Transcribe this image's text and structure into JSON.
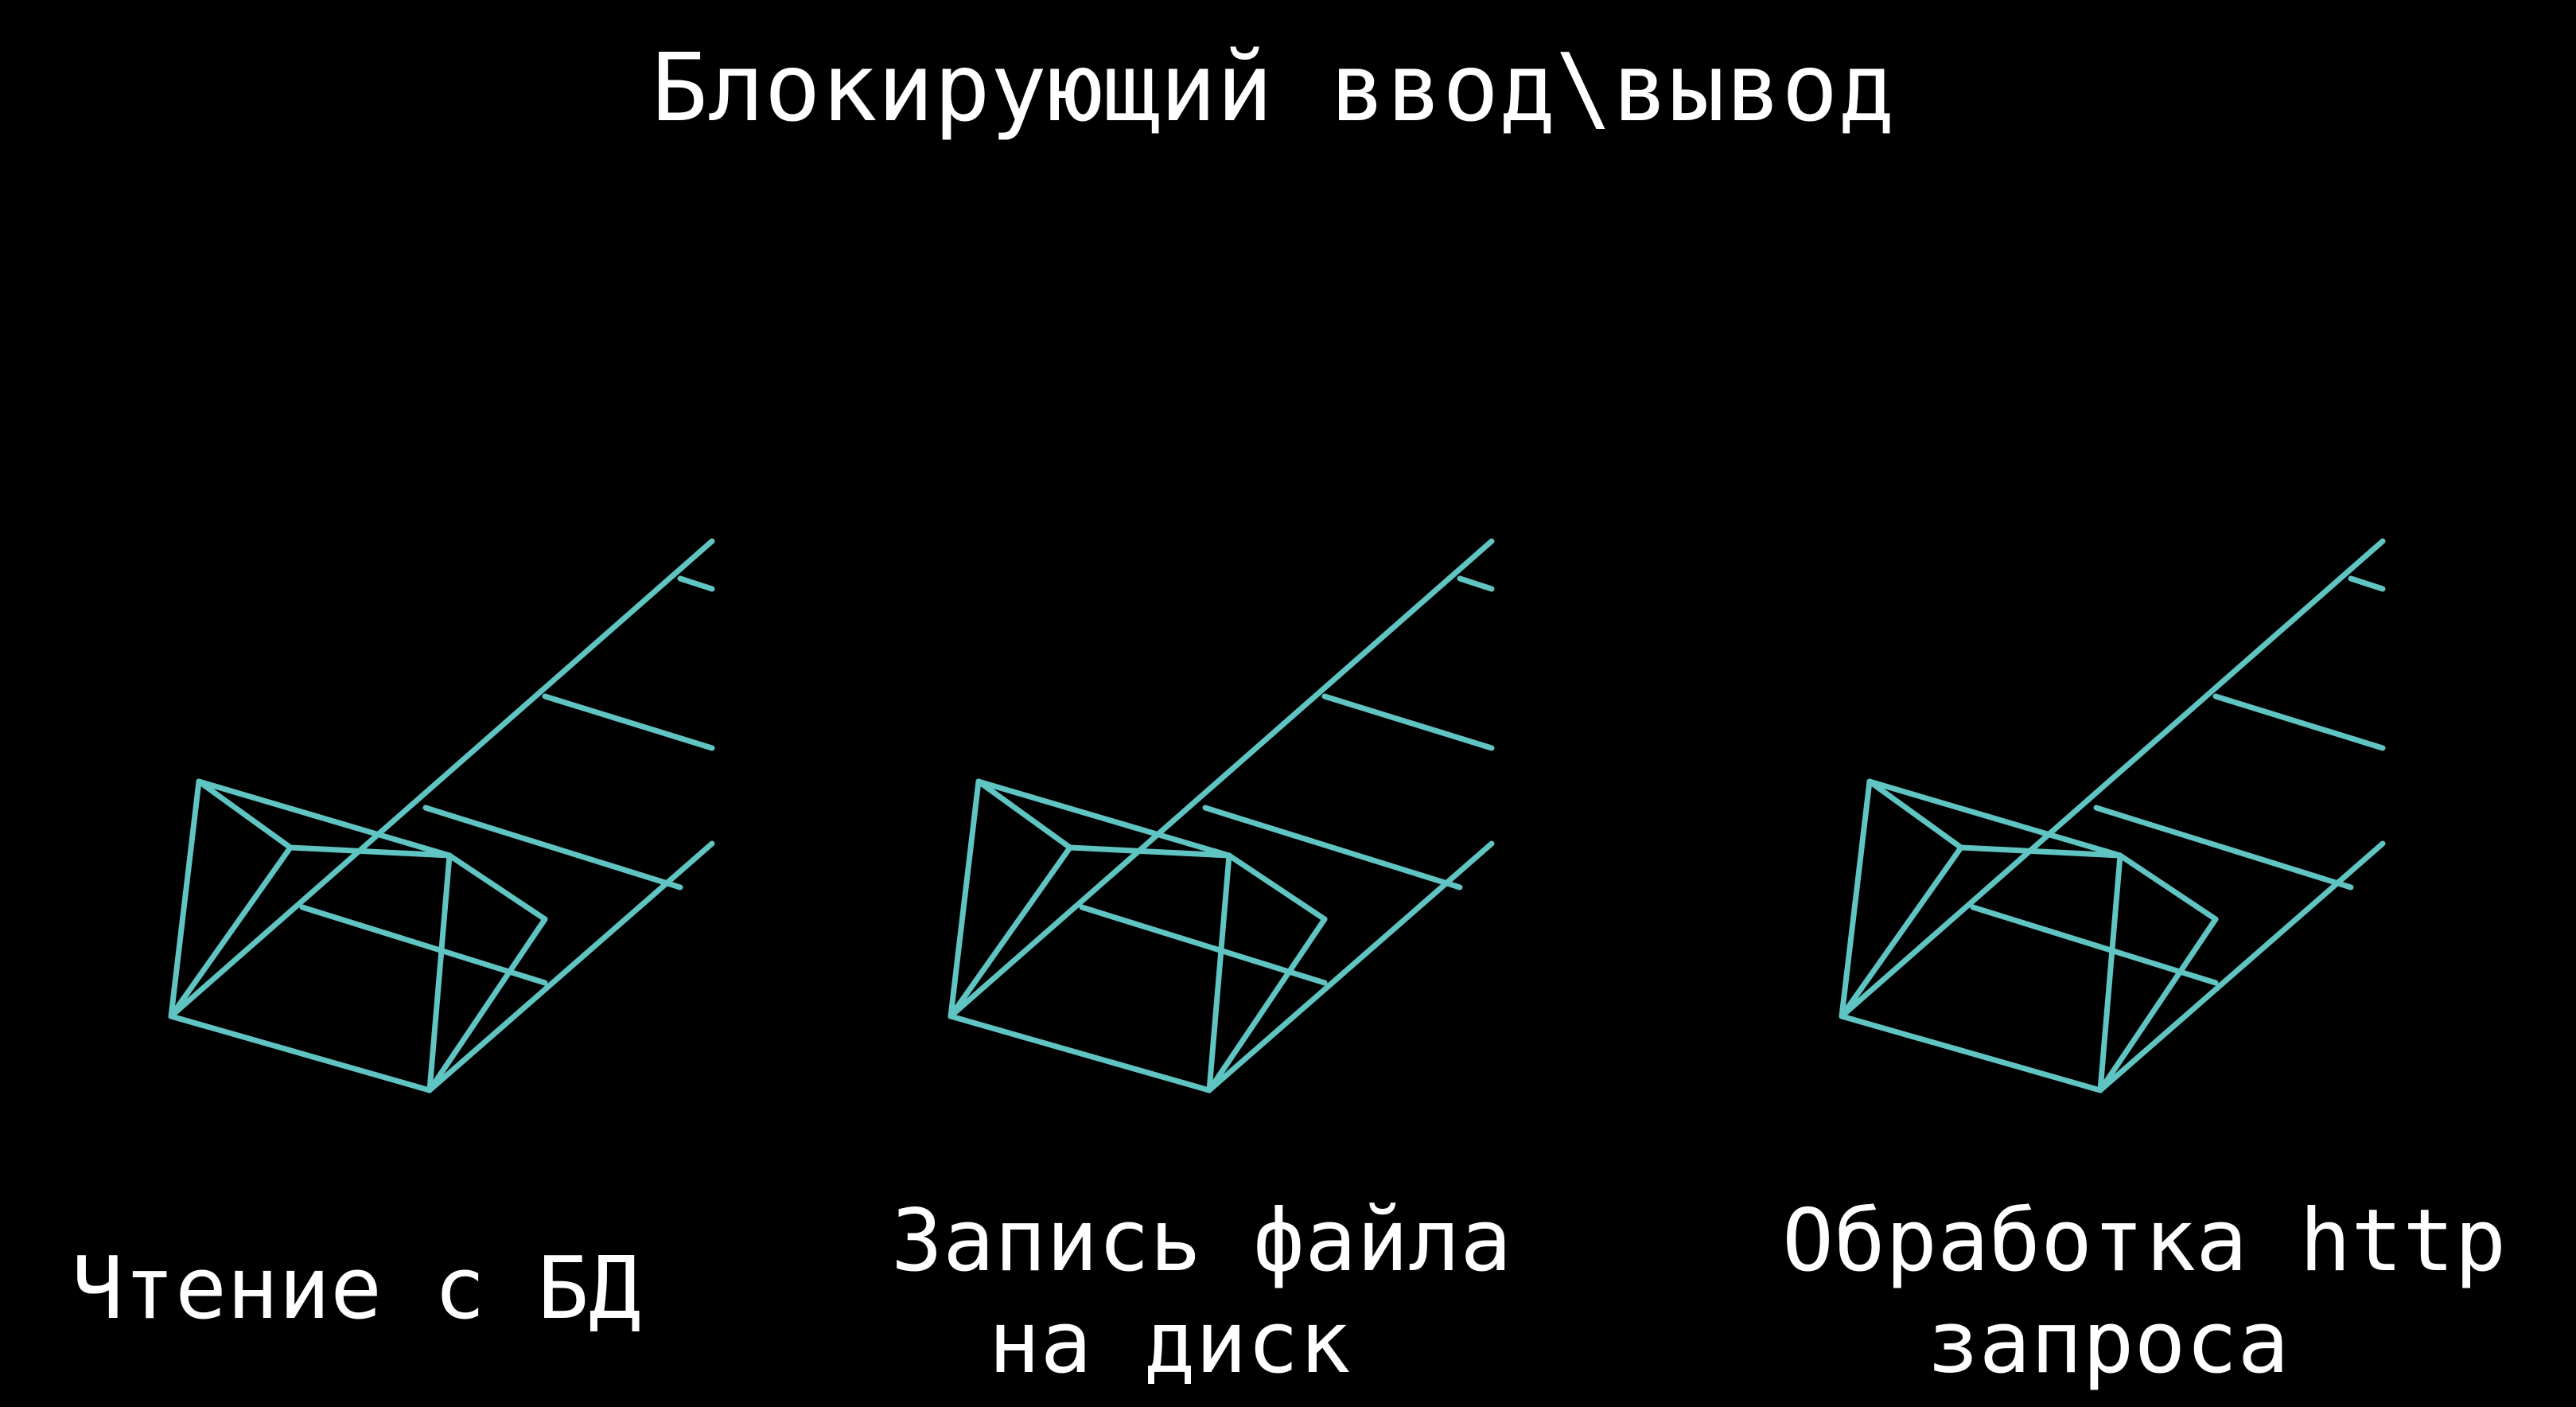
{
  "title": "Блокирующий ввод\\вывод",
  "accent_color": "#5fc4c2",
  "background_color": "#000000",
  "panels": [
    {
      "id": "db-read",
      "icon": "wireframe-pyramid-track-icon",
      "caption_lines": [
        "Чтение с БД"
      ]
    },
    {
      "id": "file-write",
      "icon": "wireframe-pyramid-track-icon",
      "caption_lines": [
        "Запись файла",
        "на диск"
      ]
    },
    {
      "id": "http-request",
      "icon": "wireframe-pyramid-track-icon",
      "caption_lines": [
        "Обработка http",
        "запроса"
      ]
    }
  ]
}
